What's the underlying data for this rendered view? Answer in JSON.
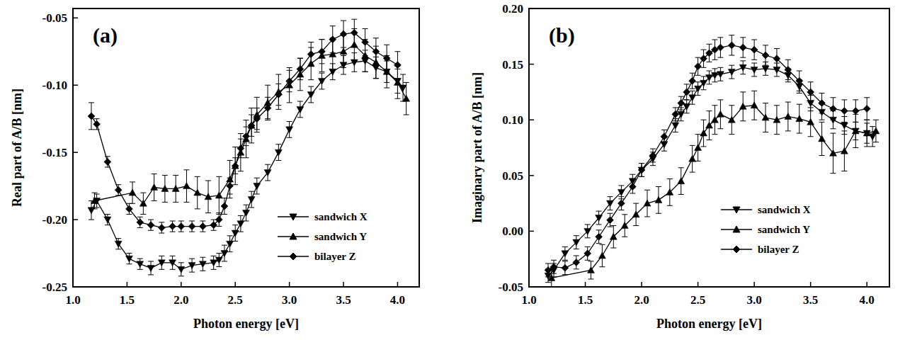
{
  "chart_data": [
    {
      "type": "line",
      "title": "(a)",
      "x_label": "Photon energy [eV]",
      "y_label": "Real part of A/B [nm]",
      "xlim": [
        1.0,
        4.2
      ],
      "xticks": [
        {
          "value": 1,
          "label": "1.0"
        },
        1.5,
        {
          "value": 2,
          "label": "2.0"
        },
        2.5,
        {
          "value": 3,
          "label": "3.0"
        },
        3.5,
        {
          "value": 4,
          "label": "4.0"
        }
      ],
      "ylim": [
        -0.25,
        -0.043
      ],
      "yticks": [
        {
          "value": -0.25,
          "label": "-0.25"
        },
        {
          "value": -0.2,
          "label": "-0.20"
        },
        {
          "value": -0.15,
          "label": "-0.15"
        },
        {
          "value": -0.1,
          "label": "-0.10"
        },
        {
          "value": -0.05,
          "label": "-0.05"
        }
      ],
      "grid": false,
      "legend": "lower right",
      "series": [
        {
          "name": "sandwich X",
          "color": "#000000",
          "marker": "triangle-down",
          "line_style": "solid",
          "x": [
            1.17,
            1.22,
            1.32,
            1.42,
            1.52,
            1.62,
            1.72,
            1.82,
            1.92,
            2.0,
            2.1,
            2.2,
            2.3,
            2.35,
            2.4,
            2.45,
            2.5,
            2.55,
            2.6,
            2.65,
            2.7,
            2.8,
            2.9,
            3.0,
            3.1,
            3.2,
            3.3,
            3.4,
            3.5,
            3.6,
            3.7,
            3.8,
            3.9,
            4.0,
            4.05
          ],
          "values": [
            -0.193,
            -0.186,
            -0.2,
            -0.218,
            -0.229,
            -0.233,
            -0.236,
            -0.232,
            -0.232,
            -0.237,
            -0.234,
            -0.233,
            -0.232,
            -0.23,
            -0.225,
            -0.218,
            -0.21,
            -0.203,
            -0.195,
            -0.185,
            -0.175,
            -0.165,
            -0.15,
            -0.133,
            -0.118,
            -0.107,
            -0.097,
            -0.09,
            -0.085,
            -0.083,
            -0.082,
            -0.087,
            -0.09,
            -0.097,
            -0.102
          ],
          "errors": [
            0.007,
            0.005,
            0.004,
            0.004,
            0.004,
            0.004,
            0.005,
            0.005,
            0.005,
            0.005,
            0.005,
            0.005,
            0.005,
            0.005,
            0.006,
            0.006,
            0.006,
            0.006,
            0.006,
            0.006,
            0.006,
            0.006,
            0.006,
            0.006,
            0.006,
            0.006,
            0.006,
            0.006,
            0.007,
            0.007,
            0.008,
            0.008,
            0.008,
            0.009,
            0.01
          ]
        },
        {
          "name": "sandwich Y",
          "color": "#000000",
          "marker": "triangle-up",
          "line_style": "solid",
          "x": [
            1.2,
            1.55,
            1.65,
            1.75,
            1.85,
            1.95,
            2.05,
            2.15,
            2.25,
            2.35,
            2.45,
            2.5,
            2.55,
            2.6,
            2.65,
            2.7,
            2.8,
            2.9,
            3.0,
            3.1,
            3.2,
            3.3,
            3.4,
            3.5,
            3.6,
            3.7,
            3.8,
            3.9,
            4.0,
            4.08
          ],
          "values": [
            -0.186,
            -0.18,
            -0.188,
            -0.176,
            -0.177,
            -0.177,
            -0.175,
            -0.18,
            -0.183,
            -0.182,
            -0.17,
            -0.16,
            -0.15,
            -0.14,
            -0.13,
            -0.122,
            -0.113,
            -0.105,
            -0.1,
            -0.092,
            -0.084,
            -0.078,
            -0.077,
            -0.075,
            -0.07,
            -0.078,
            -0.083,
            -0.09,
            -0.098,
            -0.11
          ],
          "errors": [
            0.006,
            0.008,
            0.008,
            0.01,
            0.01,
            0.01,
            0.012,
            0.012,
            0.012,
            0.014,
            0.014,
            0.014,
            0.014,
            0.014,
            0.013,
            0.013,
            0.013,
            0.013,
            0.013,
            0.012,
            0.012,
            0.012,
            0.012,
            0.012,
            0.012,
            0.012,
            0.012,
            0.012,
            0.012,
            0.012
          ]
        },
        {
          "name": "bilayer Z",
          "color": "#000000",
          "marker": "diamond",
          "line_style": "solid",
          "x": [
            1.17,
            1.22,
            1.32,
            1.42,
            1.52,
            1.62,
            1.72,
            1.82,
            1.92,
            2.0,
            2.1,
            2.2,
            2.3,
            2.35,
            2.4,
            2.45,
            2.5,
            2.55,
            2.6,
            2.65,
            2.7,
            2.8,
            2.9,
            3.0,
            3.1,
            3.2,
            3.3,
            3.4,
            3.5,
            3.6,
            3.7,
            3.8,
            3.9,
            4.0
          ],
          "values": [
            -0.123,
            -0.129,
            -0.157,
            -0.178,
            -0.192,
            -0.202,
            -0.204,
            -0.206,
            -0.205,
            -0.205,
            -0.205,
            -0.205,
            -0.204,
            -0.2,
            -0.19,
            -0.175,
            -0.16,
            -0.147,
            -0.138,
            -0.13,
            -0.125,
            -0.117,
            -0.107,
            -0.097,
            -0.088,
            -0.077,
            -0.075,
            -0.066,
            -0.062,
            -0.061,
            -0.068,
            -0.075,
            -0.08,
            -0.085
          ],
          "errors": [
            0.01,
            0.004,
            0.004,
            0.004,
            0.004,
            0.004,
            0.004,
            0.004,
            0.004,
            0.004,
            0.004,
            0.004,
            0.004,
            0.005,
            0.006,
            0.006,
            0.006,
            0.007,
            0.007,
            0.008,
            0.008,
            0.008,
            0.008,
            0.008,
            0.008,
            0.009,
            0.009,
            0.01,
            0.01,
            0.01,
            0.01,
            0.01,
            0.01,
            0.01
          ]
        }
      ]
    },
    {
      "type": "line",
      "title": "(b)",
      "x_label": "Photon energy [eV]",
      "y_label": "Imaginary part of A/B [nm]",
      "xlim": [
        1.0,
        4.2
      ],
      "xticks": [
        {
          "value": 1,
          "label": "1.0"
        },
        1.5,
        {
          "value": 2,
          "label": "2.0"
        },
        2.5,
        {
          "value": 3,
          "label": "3.0"
        },
        3.5,
        {
          "value": 4,
          "label": "4.0"
        }
      ],
      "ylim": [
        -0.05,
        0.2
      ],
      "yticks": [
        -0.05,
        {
          "value": 0,
          "label": "0.00"
        },
        0.05,
        {
          "value": 0.1,
          "label": "0.10"
        },
        0.15,
        {
          "value": 0.2,
          "label": "0.20"
        }
      ],
      "grid": false,
      "legend": "lower right",
      "series": [
        {
          "name": "sandwich X",
          "color": "#000000",
          "marker": "triangle-down",
          "line_style": "solid",
          "x": [
            1.17,
            1.22,
            1.32,
            1.42,
            1.52,
            1.62,
            1.72,
            1.82,
            1.92,
            2.0,
            2.1,
            2.2,
            2.3,
            2.35,
            2.4,
            2.45,
            2.5,
            2.55,
            2.6,
            2.65,
            2.7,
            2.8,
            2.9,
            3.0,
            3.1,
            3.2,
            3.3,
            3.4,
            3.5,
            3.6,
            3.7,
            3.8,
            3.9,
            4.0,
            4.05
          ],
          "values": [
            -0.04,
            -0.035,
            -0.02,
            -0.01,
            0.0,
            0.012,
            0.025,
            0.035,
            0.045,
            0.055,
            0.065,
            0.078,
            0.095,
            0.105,
            0.112,
            0.12,
            0.128,
            0.133,
            0.138,
            0.14,
            0.141,
            0.143,
            0.147,
            0.145,
            0.146,
            0.145,
            0.14,
            0.13,
            0.115,
            0.107,
            0.1,
            0.095,
            0.09,
            0.088,
            0.085
          ],
          "errors": [
            0.006,
            0.006,
            0.006,
            0.006,
            0.006,
            0.006,
            0.006,
            0.006,
            0.006,
            0.006,
            0.006,
            0.006,
            0.006,
            0.006,
            0.006,
            0.006,
            0.006,
            0.006,
            0.006,
            0.006,
            0.006,
            0.006,
            0.006,
            0.006,
            0.006,
            0.006,
            0.006,
            0.006,
            0.007,
            0.007,
            0.008,
            0.008,
            0.008,
            0.009,
            0.009
          ]
        },
        {
          "name": "sandwich Y",
          "color": "#000000",
          "marker": "triangle-up",
          "line_style": "solid",
          "x": [
            1.2,
            1.55,
            1.65,
            1.75,
            1.85,
            1.95,
            2.05,
            2.15,
            2.25,
            2.35,
            2.45,
            2.5,
            2.55,
            2.6,
            2.65,
            2.7,
            2.8,
            2.9,
            3.0,
            3.1,
            3.2,
            3.3,
            3.4,
            3.5,
            3.6,
            3.7,
            3.8,
            3.9,
            4.0,
            4.08
          ],
          "values": [
            -0.042,
            -0.035,
            -0.022,
            -0.005,
            0.005,
            0.015,
            0.025,
            0.028,
            0.035,
            0.045,
            0.065,
            0.075,
            0.088,
            0.095,
            0.1,
            0.105,
            0.1,
            0.112,
            0.113,
            0.102,
            0.1,
            0.103,
            0.101,
            0.098,
            0.083,
            0.07,
            0.072,
            0.09,
            0.088,
            0.09
          ],
          "errors": [
            0.008,
            0.008,
            0.01,
            0.01,
            0.01,
            0.01,
            0.012,
            0.012,
            0.012,
            0.012,
            0.012,
            0.012,
            0.012,
            0.013,
            0.013,
            0.013,
            0.013,
            0.013,
            0.013,
            0.013,
            0.013,
            0.013,
            0.013,
            0.013,
            0.015,
            0.018,
            0.018,
            0.015,
            0.012,
            0.01
          ]
        },
        {
          "name": "bilayer Z",
          "color": "#000000",
          "marker": "diamond",
          "line_style": "solid",
          "x": [
            1.17,
            1.22,
            1.32,
            1.42,
            1.52,
            1.62,
            1.72,
            1.82,
            1.92,
            2.0,
            2.1,
            2.2,
            2.3,
            2.35,
            2.4,
            2.45,
            2.5,
            2.55,
            2.6,
            2.65,
            2.7,
            2.8,
            2.9,
            3.0,
            3.1,
            3.2,
            3.3,
            3.4,
            3.5,
            3.6,
            3.7,
            3.8,
            3.9,
            4.0
          ],
          "values": [
            -0.035,
            -0.032,
            -0.033,
            -0.028,
            -0.02,
            -0.005,
            0.01,
            0.025,
            0.04,
            0.055,
            0.068,
            0.085,
            0.105,
            0.115,
            0.125,
            0.135,
            0.148,
            0.155,
            0.16,
            0.163,
            0.165,
            0.167,
            0.165,
            0.163,
            0.158,
            0.155,
            0.145,
            0.135,
            0.125,
            0.115,
            0.11,
            0.108,
            0.108,
            0.11
          ],
          "errors": [
            0.006,
            0.006,
            0.006,
            0.006,
            0.006,
            0.006,
            0.006,
            0.006,
            0.006,
            0.006,
            0.006,
            0.006,
            0.006,
            0.006,
            0.007,
            0.007,
            0.008,
            0.008,
            0.008,
            0.009,
            0.009,
            0.009,
            0.009,
            0.009,
            0.009,
            0.009,
            0.009,
            0.009,
            0.009,
            0.009,
            0.01,
            0.01,
            0.01,
            0.01
          ]
        }
      ]
    }
  ]
}
